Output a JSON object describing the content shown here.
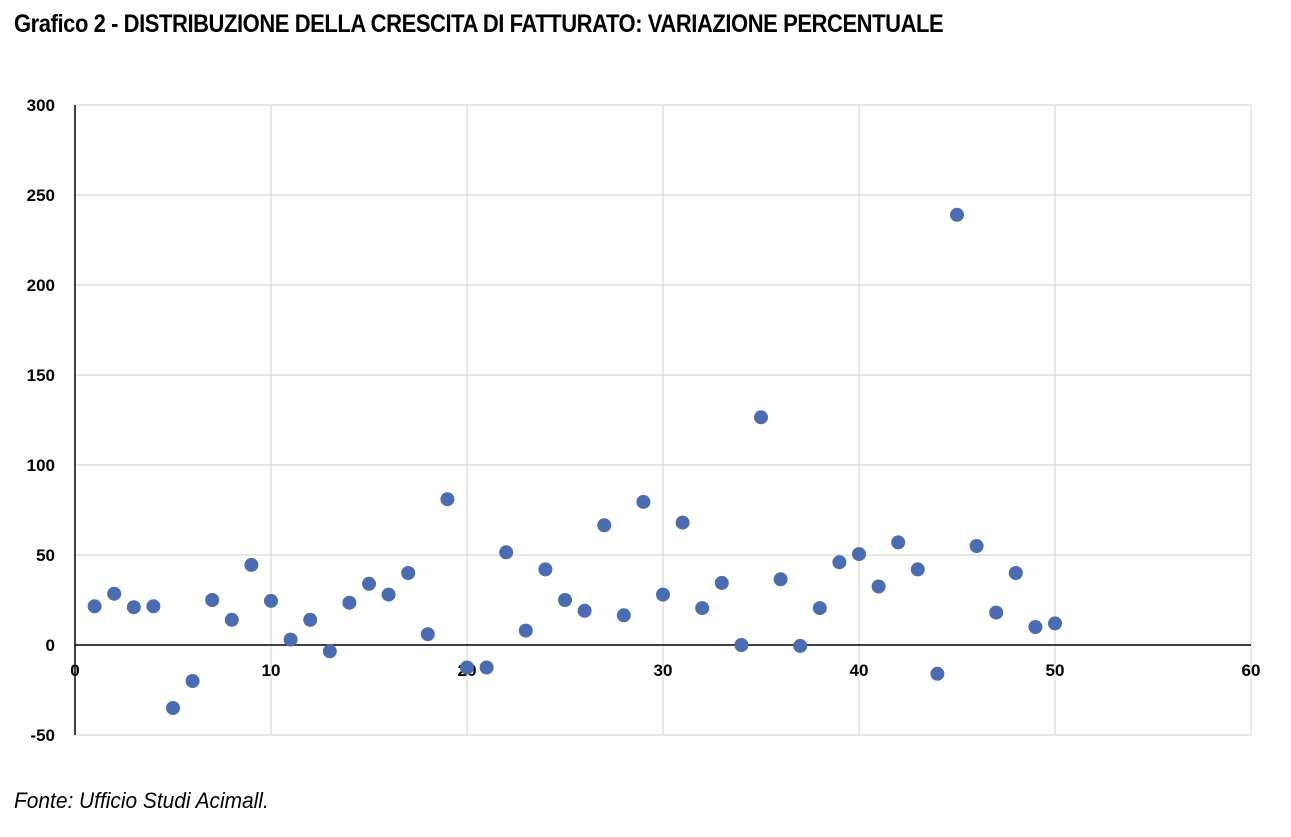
{
  "title": "Grafico 2 - DISTRIBUZIONE DELLA CRESCITA DI FATTURATO: VARIAZIONE PERCENTUALE",
  "source": "Fonte: Ufficio Studi Acimall.",
  "colors": {
    "point": "#4a6cb3",
    "grid": "#d0d0d0",
    "axis": "#000000"
  },
  "chart_data": {
    "type": "scatter",
    "title": "",
    "xlabel": "",
    "ylabel": "",
    "xlim": [
      0,
      60
    ],
    "ylim": [
      -50,
      300
    ],
    "x_ticks": [
      0,
      10,
      20,
      30,
      40,
      50,
      60
    ],
    "y_ticks": [
      300,
      250,
      200,
      150,
      100,
      50,
      0,
      -50
    ],
    "grid": true,
    "legend": "none",
    "points": [
      {
        "x": 1,
        "y": 21.5
      },
      {
        "x": 2,
        "y": 28.5
      },
      {
        "x": 3,
        "y": 21
      },
      {
        "x": 4,
        "y": 21.5
      },
      {
        "x": 5,
        "y": -35
      },
      {
        "x": 6,
        "y": -20
      },
      {
        "x": 7,
        "y": 25
      },
      {
        "x": 8,
        "y": 14
      },
      {
        "x": 9,
        "y": 44.5
      },
      {
        "x": 10,
        "y": 24.5
      },
      {
        "x": 11,
        "y": 3
      },
      {
        "x": 12,
        "y": 14
      },
      {
        "x": 13,
        "y": -3.5
      },
      {
        "x": 14,
        "y": 23.5
      },
      {
        "x": 15,
        "y": 34
      },
      {
        "x": 16,
        "y": 28
      },
      {
        "x": 17,
        "y": 40
      },
      {
        "x": 18,
        "y": 6
      },
      {
        "x": 19,
        "y": 81
      },
      {
        "x": 20,
        "y": -12.5
      },
      {
        "x": 21,
        "y": -12.5
      },
      {
        "x": 22,
        "y": 51.5
      },
      {
        "x": 23,
        "y": 8
      },
      {
        "x": 24,
        "y": 42
      },
      {
        "x": 25,
        "y": 25
      },
      {
        "x": 26,
        "y": 19
      },
      {
        "x": 27,
        "y": 66.5
      },
      {
        "x": 28,
        "y": 16.5
      },
      {
        "x": 29,
        "y": 79.5
      },
      {
        "x": 30,
        "y": 28
      },
      {
        "x": 31,
        "y": 68
      },
      {
        "x": 32,
        "y": 20.5
      },
      {
        "x": 33,
        "y": 34.5
      },
      {
        "x": 34,
        "y": 0
      },
      {
        "x": 35,
        "y": 126.5
      },
      {
        "x": 36,
        "y": 36.5
      },
      {
        "x": 37,
        "y": -0.5
      },
      {
        "x": 38,
        "y": 20.5
      },
      {
        "x": 39,
        "y": 46
      },
      {
        "x": 40,
        "y": 50.5
      },
      {
        "x": 41,
        "y": 32.5
      },
      {
        "x": 42,
        "y": 57
      },
      {
        "x": 43,
        "y": 42
      },
      {
        "x": 44,
        "y": -16
      },
      {
        "x": 45,
        "y": 239
      },
      {
        "x": 46,
        "y": 55
      },
      {
        "x": 47,
        "y": 18
      },
      {
        "x": 48,
        "y": 40
      },
      {
        "x": 49,
        "y": 10
      },
      {
        "x": 50,
        "y": 12
      }
    ]
  }
}
